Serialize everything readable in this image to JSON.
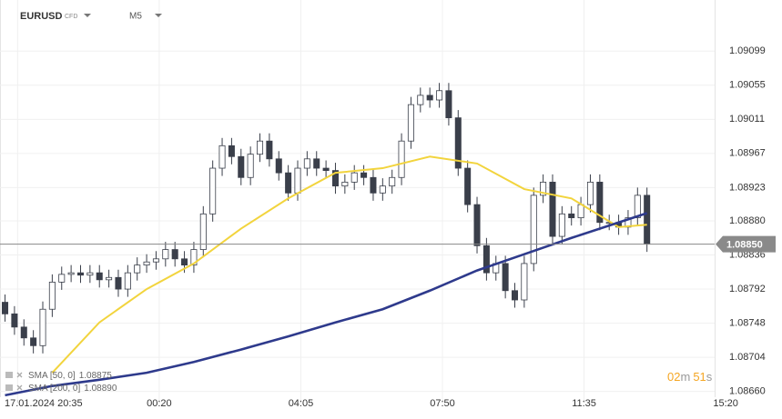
{
  "chart_data": {
    "type": "candlestick",
    "symbol": "EURUSD",
    "instrument_type": "CFD",
    "timeframe": "M5",
    "x": [
      -4,
      -1,
      2,
      5,
      8,
      11,
      14,
      17,
      20,
      23,
      26,
      29,
      32,
      35,
      38,
      41,
      44,
      47,
      50,
      53,
      56,
      59,
      62,
      65,
      68,
      71,
      74,
      77,
      80,
      83,
      86,
      89,
      92,
      95,
      98,
      101,
      104,
      107,
      110,
      113,
      116,
      119,
      122,
      125,
      128,
      131,
      134,
      137,
      140,
      143,
      146,
      149,
      152,
      155,
      158,
      161,
      164,
      167,
      170,
      173,
      176,
      179,
      182,
      185,
      188,
      191,
      194,
      197,
      200
    ],
    "open": [
      1.08775,
      1.0876,
      1.08743,
      1.08729,
      1.08719,
      1.08766,
      1.08801,
      1.08811,
      1.08813,
      1.0881,
      1.08813,
      1.08804,
      1.08807,
      1.08792,
      1.08813,
      1.08823,
      1.08827,
      1.08831,
      1.08843,
      1.08831,
      1.08823,
      1.08843,
      1.08889,
      1.08948,
      1.08977,
      1.08963,
      1.08936,
      1.08966,
      1.08983,
      1.0896,
      1.08942,
      1.08916,
      1.08948,
      1.0896,
      1.08948,
      1.08945,
      1.08925,
      1.0893,
      1.08942,
      1.08936,
      1.08916,
      1.08925,
      1.08936,
      1.08983,
      1.0903,
      1.09042,
      1.09036,
      1.09048,
      1.09013,
      1.08948,
      1.08901,
      1.08848,
      1.08813,
      1.08825,
      1.0879,
      1.08778,
      1.08825,
      1.08913,
      1.0893,
      1.0886,
      1.08889,
      1.08884,
      1.08901,
      1.0893,
      1.08878,
      1.08878,
      1.08872,
      1.08884,
      1.08913
    ],
    "high": [
      1.08785,
      1.0877,
      1.08753,
      1.08739,
      1.08776,
      1.08811,
      1.08821,
      1.08823,
      1.08823,
      1.08823,
      1.08823,
      1.08817,
      1.08817,
      1.08823,
      1.08833,
      1.08837,
      1.08841,
      1.08853,
      1.08853,
      1.08841,
      1.08853,
      1.08899,
      1.08958,
      1.08987,
      1.08987,
      1.08973,
      1.08976,
      1.08993,
      1.08993,
      1.0897,
      1.08952,
      1.08958,
      1.0897,
      1.0897,
      1.08958,
      1.08955,
      1.0894,
      1.08952,
      1.08952,
      1.08946,
      1.08935,
      1.08946,
      1.08993,
      1.0904,
      1.09052,
      1.09052,
      1.09058,
      1.09058,
      1.09023,
      1.08958,
      1.08911,
      1.08858,
      1.08835,
      1.08835,
      1.088,
      1.08835,
      1.08923,
      1.0894,
      1.0894,
      1.08899,
      1.08899,
      1.08911,
      1.0894,
      1.0894,
      1.08888,
      1.08888,
      1.08894,
      1.08923,
      1.08923
    ],
    "low": [
      1.0875,
      1.08733,
      1.08719,
      1.08709,
      1.08709,
      1.08756,
      1.08791,
      1.08801,
      1.088,
      1.088,
      1.08794,
      1.08794,
      1.08782,
      1.08782,
      1.08803,
      1.08813,
      1.08817,
      1.08821,
      1.08821,
      1.08813,
      1.08813,
      1.08833,
      1.08879,
      1.08938,
      1.08953,
      1.08926,
      1.08926,
      1.08956,
      1.0895,
      1.08932,
      1.08906,
      1.08906,
      1.08938,
      1.08938,
      1.08935,
      1.08915,
      1.08915,
      1.0892,
      1.08926,
      1.08906,
      1.08906,
      1.08915,
      1.08926,
      1.08973,
      1.0902,
      1.09026,
      1.09026,
      1.09003,
      1.08938,
      1.08891,
      1.08838,
      1.08803,
      1.08803,
      1.0878,
      1.08768,
      1.08768,
      1.08815,
      1.08903,
      1.0885,
      1.0885,
      1.08874,
      1.08874,
      1.08891,
      1.08868,
      1.08868,
      1.08862,
      1.08862,
      1.08874,
      1.0884
    ],
    "close": [
      1.0876,
      1.08743,
      1.08729,
      1.08719,
      1.08766,
      1.08801,
      1.08811,
      1.08813,
      1.0881,
      1.08813,
      1.08804,
      1.08807,
      1.08792,
      1.08813,
      1.08823,
      1.08827,
      1.08831,
      1.08843,
      1.08831,
      1.08823,
      1.08843,
      1.08889,
      1.08948,
      1.08977,
      1.08963,
      1.08936,
      1.08966,
      1.08983,
      1.0896,
      1.08942,
      1.08916,
      1.08948,
      1.0896,
      1.08948,
      1.08945,
      1.08925,
      1.0893,
      1.08942,
      1.08936,
      1.08916,
      1.08925,
      1.08936,
      1.08983,
      1.0903,
      1.09042,
      1.09036,
      1.09048,
      1.09013,
      1.08948,
      1.08901,
      1.08848,
      1.08813,
      1.08825,
      1.0879,
      1.08778,
      1.08825,
      1.08913,
      1.0893,
      1.0886,
      1.08889,
      1.08884,
      1.08901,
      1.0893,
      1.08878,
      1.08878,
      1.08872,
      1.08884,
      1.08913,
      1.0885
    ],
    "up_color": "#ffffff",
    "down_color": "#3a3f4a",
    "wick_color": "#3a3f4a",
    "series": [
      {
        "name": "SMA [50, 0]",
        "color": "#f2d43d",
        "x": [
          -4,
          11,
          26,
          41,
          56,
          71,
          86,
          101,
          116,
          131,
          146,
          161,
          176,
          191,
          200
        ],
        "values": [
          null,
          1.08684,
          1.08749,
          1.08792,
          1.08825,
          1.0887,
          1.08909,
          1.08942,
          1.08948,
          1.08963,
          1.08954,
          1.08921,
          1.08909,
          1.08872,
          1.08875
        ],
        "last_label": "1.08875"
      },
      {
        "name": "SMA [200, 0]",
        "color": "#2e3a8c",
        "x": [
          -4,
          11,
          26,
          41,
          56,
          71,
          86,
          101,
          116,
          131,
          146,
          161,
          176,
          191,
          200
        ],
        "values": [
          1.08655,
          1.08667,
          1.08675,
          1.08684,
          1.08698,
          1.08714,
          1.08731,
          1.08749,
          1.08766,
          1.0879,
          1.08816,
          1.08837,
          1.08858,
          1.08878,
          1.0889
        ],
        "last_label": "1.08890"
      }
    ],
    "last_price": {
      "value": 1.0885,
      "label": "1.08850"
    },
    "xlim": [
      -5.6,
      221.5
    ],
    "xticks": [
      {
        "value": 0,
        "label": "17.01.2024  20:35"
      },
      {
        "value": 45,
        "label": "00:20"
      },
      {
        "value": 90,
        "label": "04:05"
      },
      {
        "value": 135,
        "label": "07:50"
      },
      {
        "value": 180,
        "label": "11:35"
      },
      {
        "value": 225,
        "label": "15:20"
      }
    ],
    "ylim": [
      1.08649,
      1.09165
    ],
    "yticks": [
      1.09099,
      1.09055,
      1.09011,
      1.08967,
      1.08923,
      {
        "value": 1.0888,
        "label": "1.08880"
      },
      1.08836,
      1.08792,
      1.08748,
      1.08704,
      {
        "value": 1.0866,
        "label": "1.08660"
      }
    ],
    "grid": true,
    "countdown": {
      "minutes": "02",
      "minutes_unit": "m",
      "seconds": "51",
      "seconds_unit": "s"
    }
  }
}
